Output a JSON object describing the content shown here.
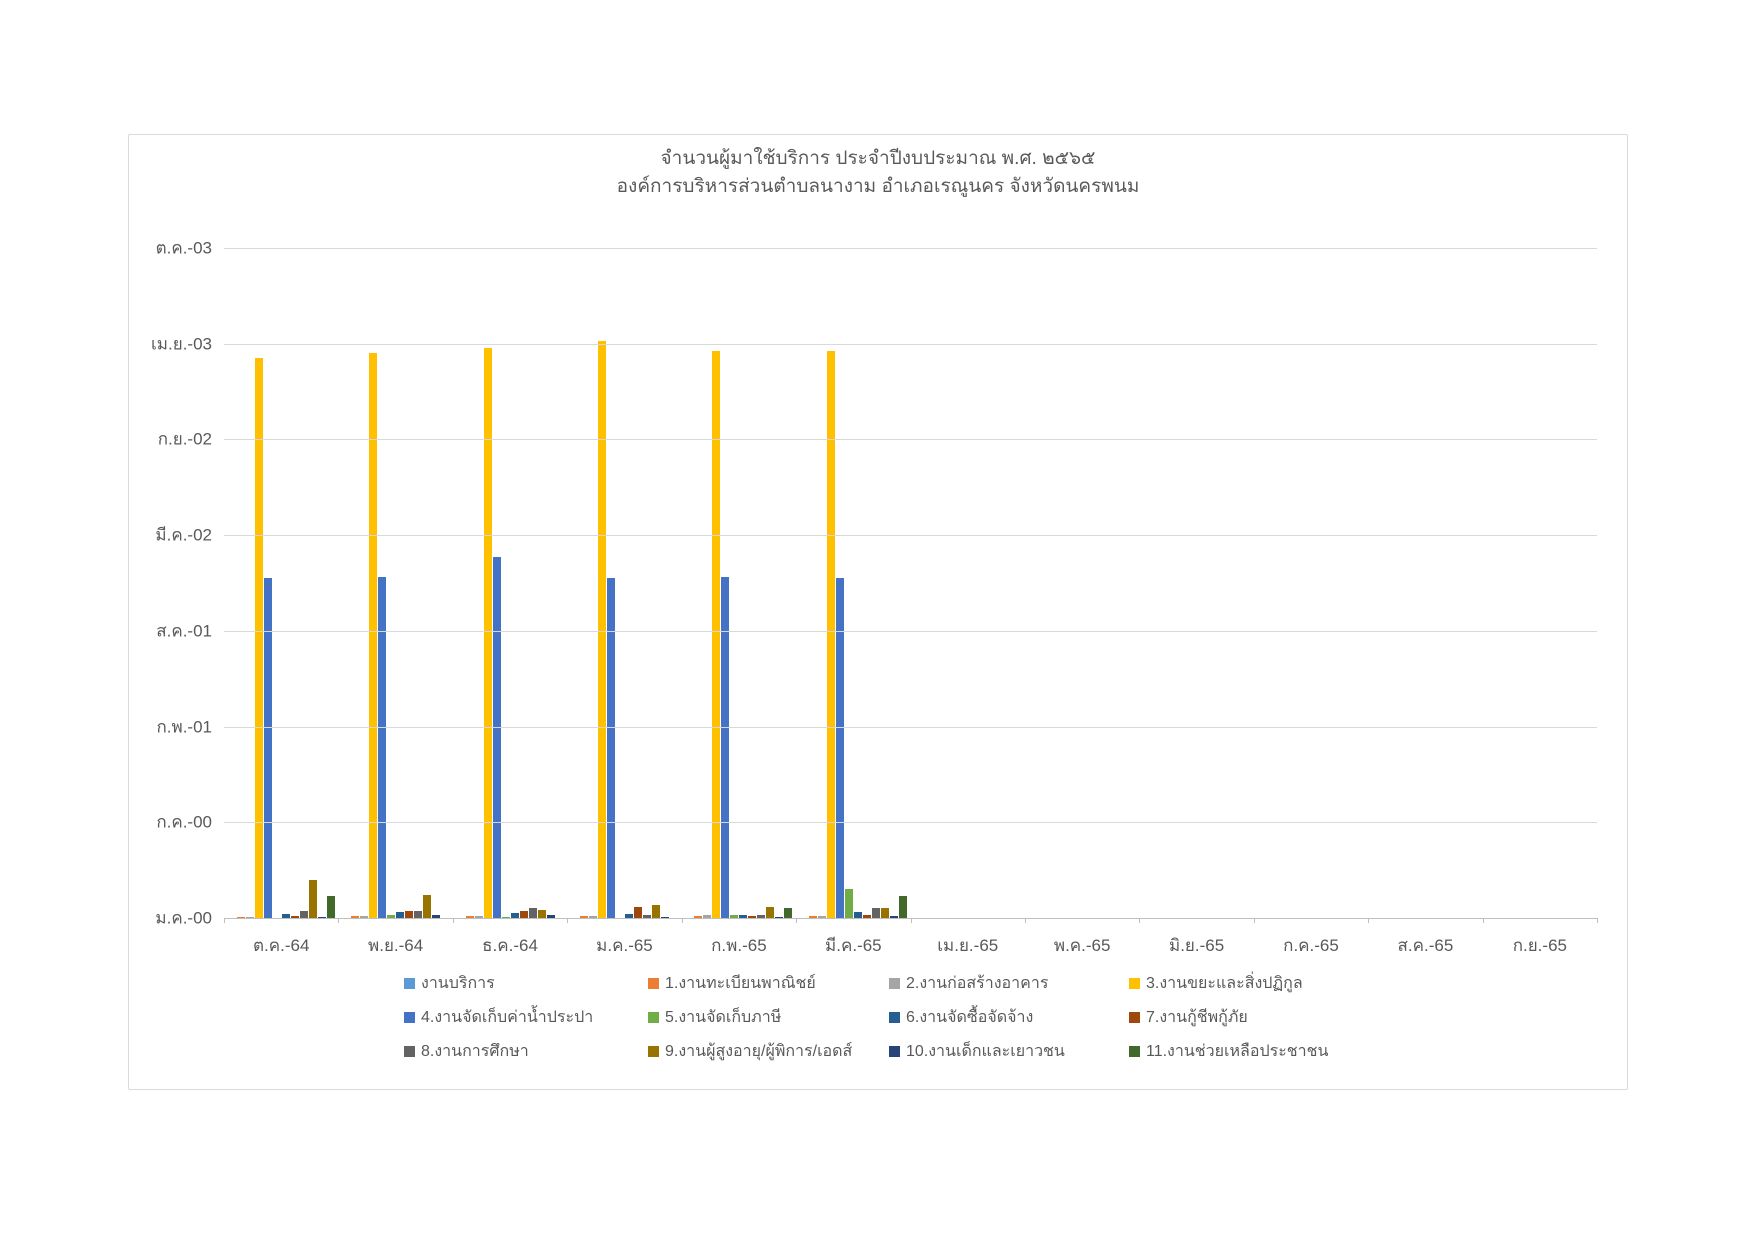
{
  "chart": {
    "title": "จำนวนผู้มาใช้บริการ ประจำปีงบประมาณ พ.ศ. ๒๕๖๕",
    "subtitle": "องค์การบริหารส่วนตำบลนางาม อำเภอเรณูนคร จังหวัดนครพนม"
  },
  "chart_data": {
    "type": "bar",
    "title": "จำนวนผู้มาใช้บริการ ประจำปีงบประมาณ พ.ศ. ๒๕๖๕",
    "subtitle": "องค์การบริหารส่วนตำบลนางาม อำเภอเรณูนคร จังหวัดนครพนม",
    "grid": true,
    "legend_position": "bottom",
    "ylim": [
      0,
      1400
    ],
    "y_major_unit": 200,
    "y_tick_labels_bottom_to_top": [
      "ม.ค.-00",
      "ก.ค.-00",
      "ก.พ.-01",
      "ส.ค.-01",
      "มี.ค.-02",
      "ก.ย.-02",
      "เม.ย.-03",
      "ต.ค.-03"
    ],
    "categories": [
      "ต.ค.-64",
      "พ.ย.-64",
      "ธ.ค.-64",
      "ม.ค.-65",
      "ก.พ.-65",
      "มี.ค.-65",
      "เม.ย.-65",
      "พ.ค.-65",
      "มิ.ย.-65",
      "ก.ค.-65",
      "ส.ค.-65",
      "ก.ย.-65"
    ],
    "series": [
      {
        "name": "งานบริการ",
        "color": "#5B9BD5",
        "values": [
          0,
          0,
          0,
          0,
          0,
          0,
          0,
          0,
          0,
          0,
          0,
          0
        ]
      },
      {
        "name": "1.งานทะเบียนพาณิชย์",
        "color": "#ED7D31",
        "values": [
          2,
          4,
          4,
          4,
          5,
          4,
          0,
          0,
          0,
          0,
          0,
          0
        ]
      },
      {
        "name": "2.งานก่อสร้างอาคาร",
        "color": "#A5A5A5",
        "values": [
          2,
          4,
          5,
          4,
          6,
          5,
          0,
          0,
          0,
          0,
          0,
          0
        ]
      },
      {
        "name": "3.งานขยะและสิ่งปฏิกูล",
        "color": "#FFC000",
        "values": [
          1170,
          1180,
          1190,
          1205,
          1185,
          1185,
          0,
          0,
          0,
          0,
          0,
          0
        ]
      },
      {
        "name": "4.งานจัดเก็บค่าน้ำประปา",
        "color": "#4472C4",
        "values": [
          710,
          712,
          755,
          710,
          712,
          710,
          0,
          0,
          0,
          0,
          0,
          0
        ]
      },
      {
        "name": "5.งานจัดเก็บภาษี",
        "color": "#70AD47",
        "values": [
          0,
          6,
          2,
          0,
          7,
          60,
          0,
          0,
          0,
          0,
          0,
          0
        ]
      },
      {
        "name": "6.งานจัดซื้อจัดจ้าง",
        "color": "#255E91",
        "values": [
          8,
          13,
          10,
          8,
          7,
          13,
          0,
          0,
          0,
          0,
          0,
          0
        ]
      },
      {
        "name": "7.งานกู้ชีพกู้ภัย",
        "color": "#9E480E",
        "values": [
          5,
          15,
          14,
          24,
          5,
          6,
          0,
          0,
          0,
          0,
          0,
          0
        ]
      },
      {
        "name": "8.งานการศึกษา",
        "color": "#636363",
        "values": [
          14,
          14,
          21,
          7,
          7,
          21,
          0,
          0,
          0,
          0,
          0,
          0
        ]
      },
      {
        "name": "9.งานผู้สูงอายุ/ผู้พิการ/เอดส์",
        "color": "#997300",
        "values": [
          80,
          48,
          17,
          28,
          24,
          21,
          0,
          0,
          0,
          0,
          0,
          0
        ]
      },
      {
        "name": "10.งานเด็กและเยาวชน",
        "color": "#264478",
        "values": [
          3,
          7,
          6,
          2,
          3,
          4,
          0,
          0,
          0,
          0,
          0,
          0
        ]
      },
      {
        "name": "11.งานช่วยเหลือประชาชน",
        "color": "#43682B",
        "values": [
          47,
          0,
          0,
          0,
          20,
          45,
          0,
          0,
          0,
          0,
          0,
          0
        ]
      }
    ],
    "legend_layout_rows": [
      [
        0,
        1,
        2,
        3
      ],
      [
        4,
        5,
        6,
        7
      ],
      [
        8,
        9,
        10,
        11
      ]
    ]
  }
}
